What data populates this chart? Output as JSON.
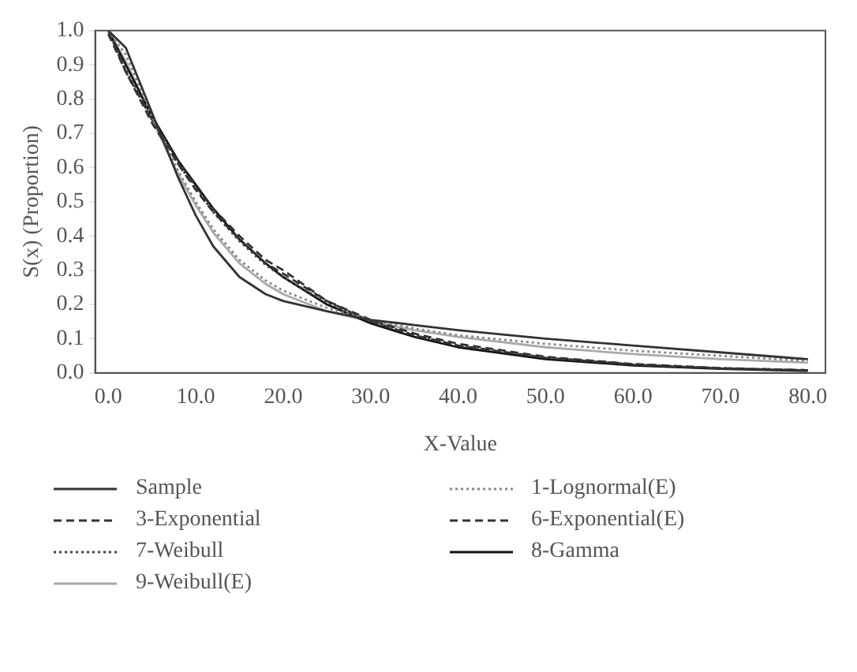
{
  "chart_data": {
    "type": "line",
    "xlabel": "X-Value",
    "ylabel": "S(x) (Proportion)",
    "x": [
      0,
      2,
      5,
      8,
      10,
      12,
      15,
      18,
      20,
      25,
      30,
      35,
      40,
      50,
      60,
      70,
      80
    ],
    "xlim": [
      -1.5,
      82
    ],
    "xticks": [
      {
        "value": 0,
        "label": "0.0"
      },
      {
        "value": 10,
        "label": "10.0"
      },
      {
        "value": 20,
        "label": "20.0"
      },
      {
        "value": 30,
        "label": "30.0"
      },
      {
        "value": 40,
        "label": "40.0"
      },
      {
        "value": 50,
        "label": "50.0"
      },
      {
        "value": 60,
        "label": "60.0"
      },
      {
        "value": 70,
        "label": "70.0"
      },
      {
        "value": 80,
        "label": "80.0"
      }
    ],
    "ylim": [
      0,
      1
    ],
    "yticks": [
      {
        "value": 0,
        "label": "0.0"
      },
      {
        "value": 0.1,
        "label": "0.1"
      },
      {
        "value": 0.2,
        "label": "0.2"
      },
      {
        "value": 0.3,
        "label": "0.3"
      },
      {
        "value": 0.4,
        "label": "0.4"
      },
      {
        "value": 0.5,
        "label": "0.5"
      },
      {
        "value": 0.6,
        "label": "0.6"
      },
      {
        "value": 0.7,
        "label": "0.7"
      },
      {
        "value": 0.8,
        "label": "0.8"
      },
      {
        "value": 0.9,
        "label": "0.9"
      },
      {
        "value": 1,
        "label": "1.0"
      }
    ],
    "grid": false,
    "legend": "bottom",
    "marker": "none",
    "series": [
      {
        "name": "Sample",
        "color": "#333333",
        "line_style": "solid",
        "values": [
          1,
          0.95,
          0.76,
          0.57,
          0.46,
          0.37,
          0.28,
          0.23,
          0.21,
          0.18,
          0.155,
          0.14,
          0.125,
          0.1,
          0.08,
          0.06,
          0.04
        ]
      },
      {
        "name": "1-Lognormal(E)",
        "color": "#888888",
        "line_style": "dotted",
        "values": [
          1,
          0.93,
          0.75,
          0.59,
          0.5,
          0.42,
          0.33,
          0.27,
          0.24,
          0.19,
          0.155,
          0.13,
          0.11,
          0.085,
          0.065,
          0.05,
          0.035
        ]
      },
      {
        "name": "3-Exponential",
        "color": "#333333",
        "line_style": "dashed",
        "values": [
          1,
          0.88,
          0.73,
          0.61,
          0.535,
          0.47,
          0.39,
          0.32,
          0.29,
          0.21,
          0.15,
          0.11,
          0.08,
          0.044,
          0.024,
          0.013,
          0.007
        ]
      },
      {
        "name": "6-Exponential(E)",
        "color": "#333333",
        "line_style": "dashed",
        "values": [
          0.99,
          0.88,
          0.74,
          0.62,
          0.545,
          0.48,
          0.4,
          0.33,
          0.3,
          0.21,
          0.155,
          0.115,
          0.085,
          0.047,
          0.026,
          0.014,
          0.008
        ]
      },
      {
        "name": "7-Weibull",
        "color": "#444444",
        "line_style": "dotted",
        "values": [
          1,
          0.89,
          0.74,
          0.61,
          0.54,
          0.47,
          0.385,
          0.315,
          0.28,
          0.205,
          0.15,
          0.11,
          0.08,
          0.045,
          0.025,
          0.014,
          0.008
        ]
      },
      {
        "name": "8-Gamma",
        "color": "#111111",
        "line_style": "solid",
        "values": [
          1,
          0.9,
          0.75,
          0.62,
          0.55,
          0.48,
          0.39,
          0.32,
          0.28,
          0.2,
          0.145,
          0.105,
          0.075,
          0.04,
          0.022,
          0.012,
          0.006
        ]
      },
      {
        "name": "9-Weibull(E)",
        "color": "#aaaaaa",
        "line_style": "solid",
        "values": [
          1,
          0.91,
          0.74,
          0.58,
          0.49,
          0.41,
          0.32,
          0.26,
          0.23,
          0.18,
          0.15,
          0.125,
          0.105,
          0.075,
          0.055,
          0.04,
          0.03
        ]
      }
    ]
  }
}
